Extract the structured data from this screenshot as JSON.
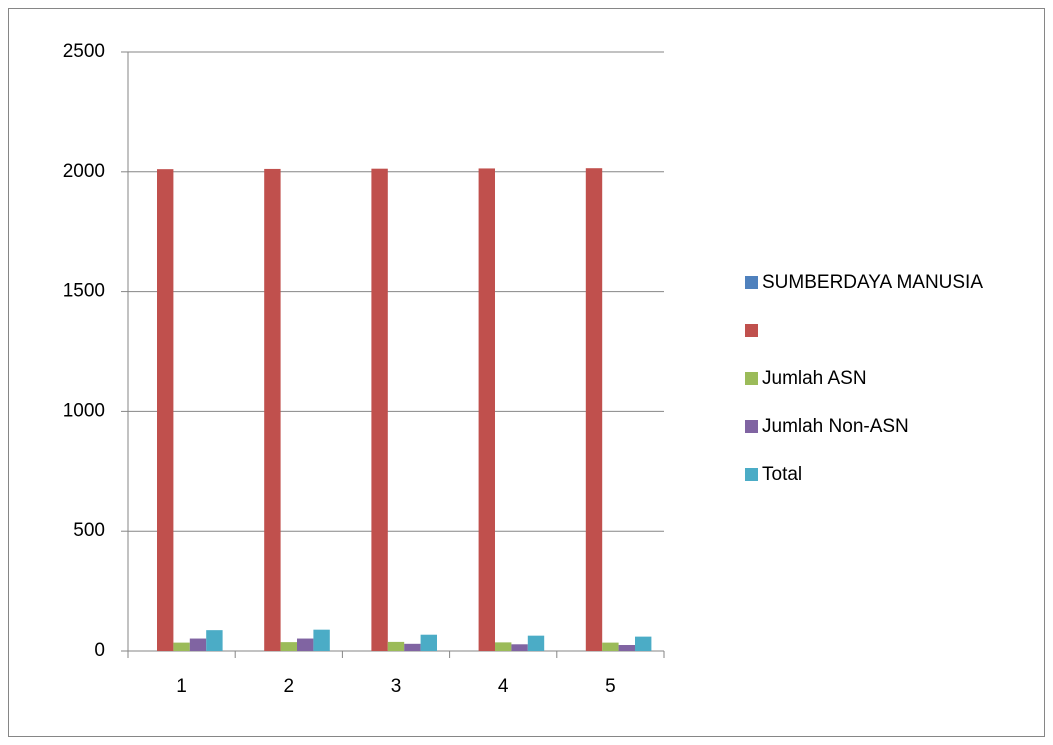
{
  "chart_data": {
    "type": "bar",
    "categories": [
      "1",
      "2",
      "3",
      "4",
      "5"
    ],
    "series": [
      {
        "name": "SUMBERDAYA MANUSIA",
        "color": "#4f81bd",
        "values": [
          0,
          0,
          0,
          0,
          0
        ]
      },
      {
        "name": null,
        "color": "#c0504d",
        "values": [
          2011,
          2012,
          2013,
          2014,
          2015
        ]
      },
      {
        "name": "Jumlah ASN",
        "color": "#9bbb59",
        "values": [
          35,
          37,
          38,
          36,
          35
        ]
      },
      {
        "name": "Jumlah Non-ASN",
        "color": "#8064a2",
        "values": [
          52,
          52,
          30,
          28,
          25
        ]
      },
      {
        "name": "Total",
        "color": "#4bacc6",
        "values": [
          87,
          89,
          68,
          64,
          60
        ]
      }
    ],
    "ylim": [
      0,
      2500
    ],
    "yticks": [
      0,
      500,
      1000,
      1500,
      2000,
      2500
    ],
    "grid": true,
    "legend": "right"
  }
}
